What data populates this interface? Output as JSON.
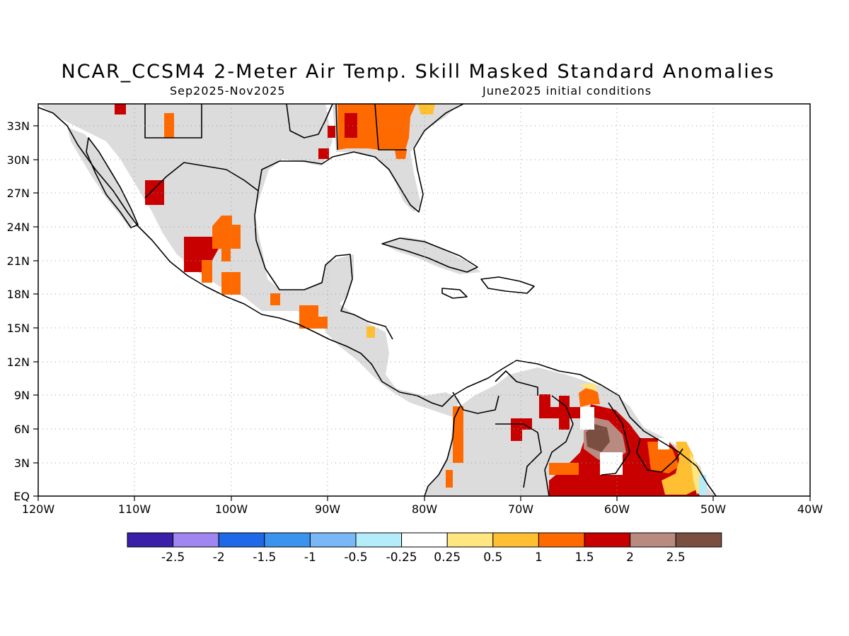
{
  "title": "NCAR_CCSM4 2-Meter Air Temp. Skill Masked Standard Anomalies",
  "subtitle_left": "Sep2025-Nov2025",
  "subtitle_right": "June2025 initial conditions",
  "axes": {
    "x_ticks": [
      "120W",
      "110W",
      "100W",
      "90W",
      "80W",
      "70W",
      "60W",
      "50W",
      "40W"
    ],
    "y_ticks": [
      "EQ",
      "3N",
      "6N",
      "9N",
      "12N",
      "15N",
      "18N",
      "21N",
      "24N",
      "27N",
      "30N",
      "33N"
    ],
    "grid": "dotted",
    "lon_range": [
      -120,
      -40
    ],
    "lat_range": [
      0,
      35
    ]
  },
  "colorbar": {
    "colors": [
      "#3a1fa8",
      "#9f86f0",
      "#1f68e8",
      "#3b93f0",
      "#79b7f6",
      "#b4ecfa",
      "#ffffff",
      "#ffe680",
      "#ffbf33",
      "#ff6a00",
      "#c80000",
      "#b88a80",
      "#7a4f42"
    ],
    "labels": [
      "-2.5",
      "-2",
      "-1.5",
      "-1",
      "-0.5",
      "-0.25",
      "0.25",
      "0.5",
      "1",
      "1.5",
      "2",
      "2.5"
    ]
  },
  "legend_colors": {
    "insignificant": "#dcdcdc",
    "coast": "#000000"
  }
}
